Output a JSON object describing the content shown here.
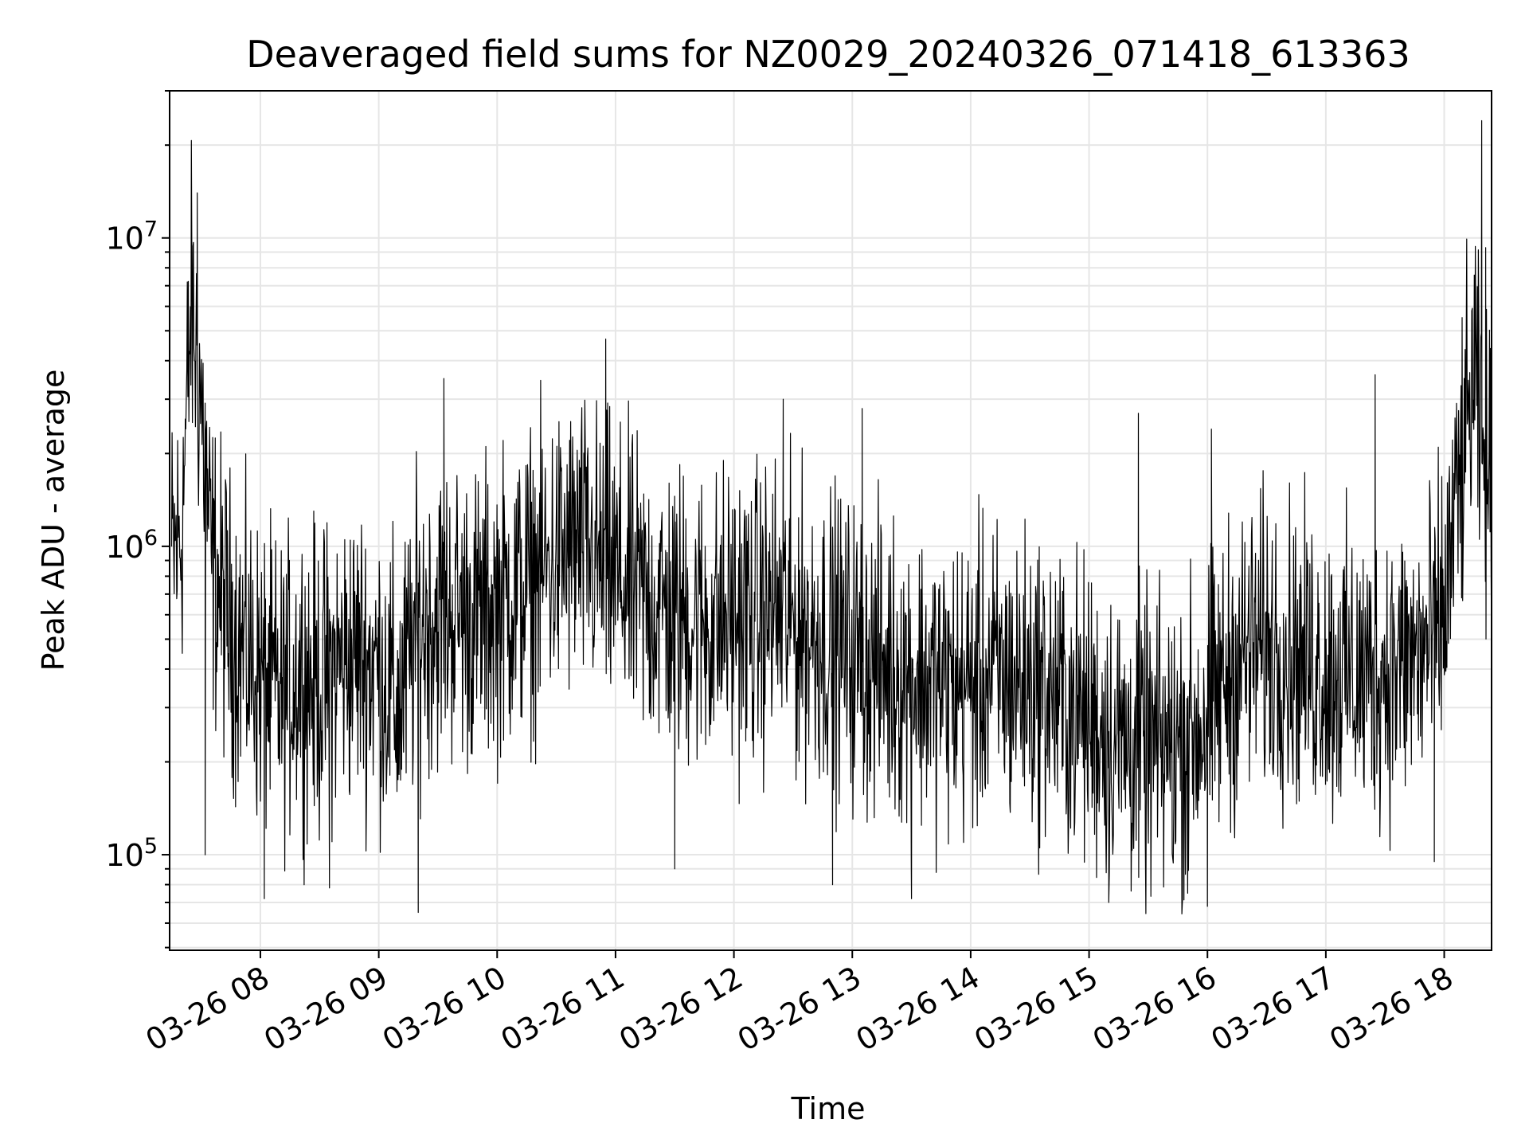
{
  "chart_data": {
    "type": "line",
    "title": "Deaveraged field sums for NZ0029_20240326_071418_613363",
    "xlabel": "Time",
    "ylabel": "Peak ADU - average",
    "y_scale": "log",
    "grid": true,
    "line_color": "#000000",
    "grid_color": "#e6e6e6",
    "xlim": [
      "2024-03-26 07:14",
      "2024-03-26 18:24"
    ],
    "ylim": [
      49000,
      30000000
    ],
    "x_ticks": [
      {
        "t": "2024-03-26 08:00",
        "label": "03-26 08"
      },
      {
        "t": "2024-03-26 09:00",
        "label": "03-26 09"
      },
      {
        "t": "2024-03-26 10:00",
        "label": "03-26 10"
      },
      {
        "t": "2024-03-26 11:00",
        "label": "03-26 11"
      },
      {
        "t": "2024-03-26 12:00",
        "label": "03-26 12"
      },
      {
        "t": "2024-03-26 13:00",
        "label": "03-26 13"
      },
      {
        "t": "2024-03-26 14:00",
        "label": "03-26 14"
      },
      {
        "t": "2024-03-26 15:00",
        "label": "03-26 15"
      },
      {
        "t": "2024-03-26 16:00",
        "label": "03-26 16"
      },
      {
        "t": "2024-03-26 17:00",
        "label": "03-26 17"
      },
      {
        "t": "2024-03-26 18:00",
        "label": "03-26 18"
      }
    ],
    "y_ticks": [
      {
        "value": 100000,
        "base": "10",
        "exp": "5"
      },
      {
        "value": 1000000,
        "base": "10",
        "exp": "6"
      },
      {
        "value": 10000000,
        "base": "10",
        "exp": "7"
      }
    ],
    "series": [
      {
        "points": [
          [
            "2024-03-26 07:15",
            900000
          ],
          [
            "2024-03-26 07:20",
            1100000
          ],
          [
            "2024-03-26 07:25",
            6000000
          ],
          [
            "2024-03-26 07:30",
            3000000
          ],
          [
            "2024-03-26 07:35",
            900000
          ],
          [
            "2024-03-26 07:40",
            700000
          ],
          [
            "2024-03-26 07:45",
            550000
          ],
          [
            "2024-03-26 07:50",
            480000
          ],
          [
            "2024-03-26 07:55",
            420000
          ],
          [
            "2024-03-26 08:00",
            380000
          ],
          [
            "2024-03-26 08:10",
            320000
          ],
          [
            "2024-03-26 08:20",
            400000
          ],
          [
            "2024-03-26 08:30",
            350000
          ],
          [
            "2024-03-26 08:40",
            420000
          ],
          [
            "2024-03-26 08:50",
            450000
          ],
          [
            "2024-03-26 09:00",
            400000
          ],
          [
            "2024-03-26 09:10",
            300000
          ],
          [
            "2024-03-26 09:20",
            550000
          ],
          [
            "2024-03-26 09:30",
            600000
          ],
          [
            "2024-03-26 09:40",
            620000
          ],
          [
            "2024-03-26 09:50",
            580000
          ],
          [
            "2024-03-26 10:00",
            650000
          ],
          [
            "2024-03-26 10:10",
            700000
          ],
          [
            "2024-03-26 10:20",
            800000
          ],
          [
            "2024-03-26 10:30",
            900000
          ],
          [
            "2024-03-26 10:40",
            1000000
          ],
          [
            "2024-03-26 10:50",
            900000
          ],
          [
            "2024-03-26 11:00",
            800000
          ],
          [
            "2024-03-26 11:10",
            700000
          ],
          [
            "2024-03-26 11:20",
            650000
          ],
          [
            "2024-03-26 11:30",
            600000
          ],
          [
            "2024-03-26 11:40",
            580000
          ],
          [
            "2024-03-26 11:50",
            560000
          ],
          [
            "2024-03-26 12:00",
            600000
          ],
          [
            "2024-03-26 12:10",
            580000
          ],
          [
            "2024-03-26 12:20",
            620000
          ],
          [
            "2024-03-26 12:30",
            560000
          ],
          [
            "2024-03-26 12:40",
            520000
          ],
          [
            "2024-03-26 12:50",
            500000
          ],
          [
            "2024-03-26 13:00",
            450000
          ],
          [
            "2024-03-26 13:10",
            420000
          ],
          [
            "2024-03-26 13:20",
            400000
          ],
          [
            "2024-03-26 13:30",
            380000
          ],
          [
            "2024-03-26 13:40",
            360000
          ],
          [
            "2024-03-26 13:50",
            350000
          ],
          [
            "2024-03-26 14:00",
            360000
          ],
          [
            "2024-03-26 14:10",
            380000
          ],
          [
            "2024-03-26 14:20",
            370000
          ],
          [
            "2024-03-26 14:30",
            360000
          ],
          [
            "2024-03-26 14:40",
            340000
          ],
          [
            "2024-03-26 14:50",
            300000
          ],
          [
            "2024-03-26 15:00",
            280000
          ],
          [
            "2024-03-26 15:10",
            250000
          ],
          [
            "2024-03-26 15:20",
            230000
          ],
          [
            "2024-03-26 15:30",
            220000
          ],
          [
            "2024-03-26 15:40",
            220000
          ],
          [
            "2024-03-26 15:50",
            240000
          ],
          [
            "2024-03-26 16:00",
            280000
          ],
          [
            "2024-03-26 16:10",
            380000
          ],
          [
            "2024-03-26 16:20",
            450000
          ],
          [
            "2024-03-26 16:30",
            480000
          ],
          [
            "2024-03-26 16:40",
            460000
          ],
          [
            "2024-03-26 16:50",
            420000
          ],
          [
            "2024-03-26 17:00",
            400000
          ],
          [
            "2024-03-26 17:10",
            380000
          ],
          [
            "2024-03-26 17:20",
            380000
          ],
          [
            "2024-03-26 17:30",
            400000
          ],
          [
            "2024-03-26 17:40",
            420000
          ],
          [
            "2024-03-26 17:50",
            450000
          ],
          [
            "2024-03-26 18:00",
            600000
          ],
          [
            "2024-03-26 18:05",
            1200000
          ],
          [
            "2024-03-26 18:10",
            2000000
          ],
          [
            "2024-03-26 18:15",
            3500000
          ],
          [
            "2024-03-26 18:20",
            1800000
          ],
          [
            "2024-03-26 18:24",
            1500000
          ]
        ],
        "spikes": [
          [
            "2024-03-26 07:28",
            14000000
          ],
          [
            "2024-03-26 07:32",
            100000
          ],
          [
            "2024-03-26 08:02",
            72000
          ],
          [
            "2024-03-26 08:35",
            78000
          ],
          [
            "2024-03-26 09:20",
            65000
          ],
          [
            "2024-03-26 09:33",
            3500000
          ],
          [
            "2024-03-26 10:55",
            4700000
          ],
          [
            "2024-03-26 11:30",
            90000
          ],
          [
            "2024-03-26 12:25",
            3000000
          ],
          [
            "2024-03-26 12:50",
            80000
          ],
          [
            "2024-03-26 13:05",
            2800000
          ],
          [
            "2024-03-26 13:30",
            72000
          ],
          [
            "2024-03-26 15:10",
            70000
          ],
          [
            "2024-03-26 15:25",
            2700000
          ],
          [
            "2024-03-26 15:50",
            75000
          ],
          [
            "2024-03-26 16:00",
            68000
          ],
          [
            "2024-03-26 16:02",
            2400000
          ],
          [
            "2024-03-26 17:25",
            3600000
          ],
          [
            "2024-03-26 17:55",
            95000
          ],
          [
            "2024-03-26 18:19",
            24000000
          ],
          [
            "2024-03-26 18:21",
            9300000
          ]
        ]
      }
    ]
  }
}
